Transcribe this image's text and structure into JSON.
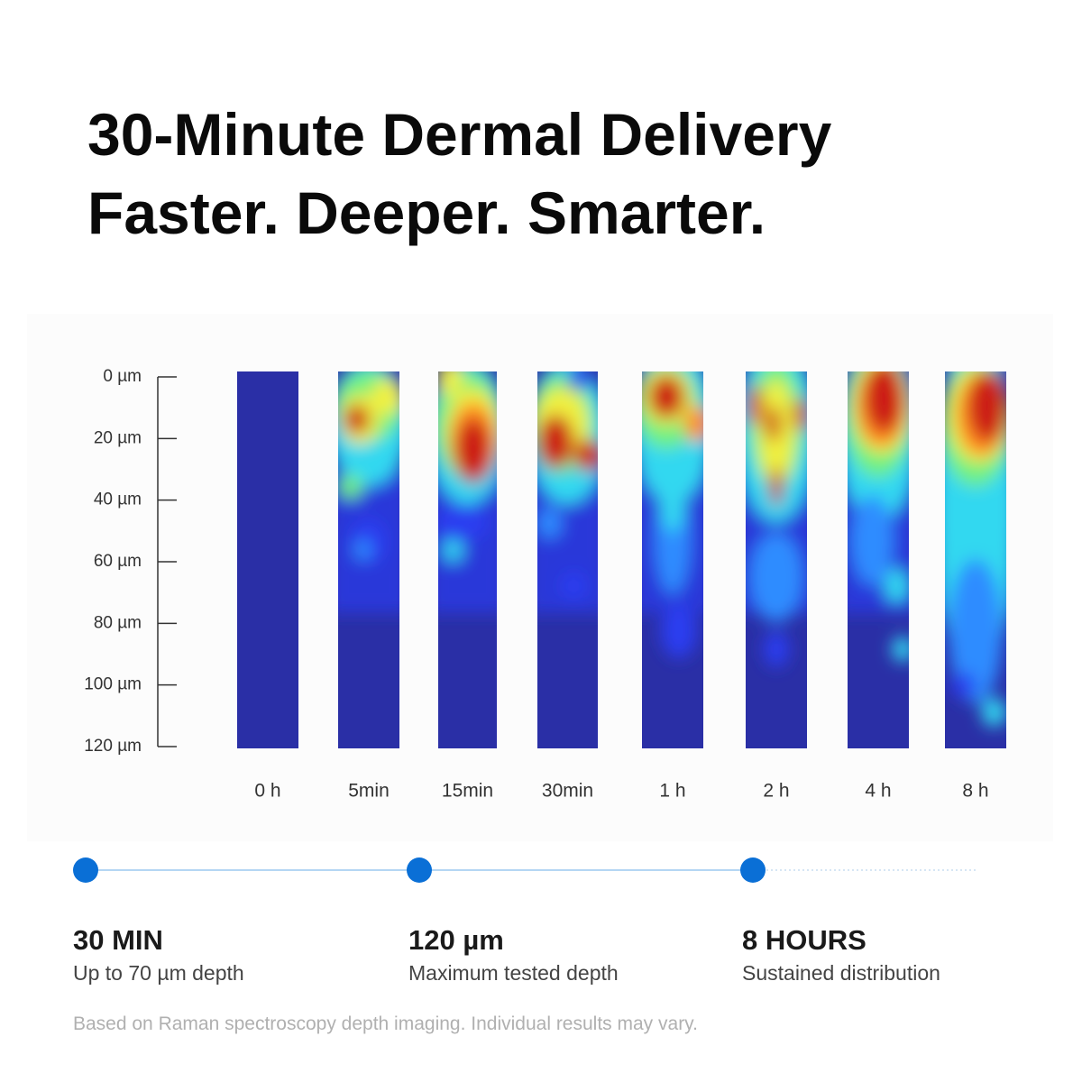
{
  "header": {
    "title_line_1": "30-Minute Dermal Delivery",
    "title_line_2": "Faster. Deeper. Smarter."
  },
  "figure": {
    "depth_labels": [
      "0 µm",
      "20 µm",
      "40 µm",
      "60 µm",
      "80 µm",
      "100 µm",
      "120 µm"
    ],
    "time_labels": [
      "0 h",
      "5min",
      "15min",
      "30min",
      "1 h",
      "2 h",
      "4 h",
      "8 h"
    ]
  },
  "stats": [
    {
      "headline": "30 MIN",
      "caption": "Up to 70 µm depth"
    },
    {
      "headline": "120 µm",
      "caption": "Maximum tested depth"
    },
    {
      "headline": "8 HOURS",
      "caption": "Sustained distribution"
    }
  ],
  "footnote": "Based on Raman spectroscopy depth imaging. Individual results may vary."
}
